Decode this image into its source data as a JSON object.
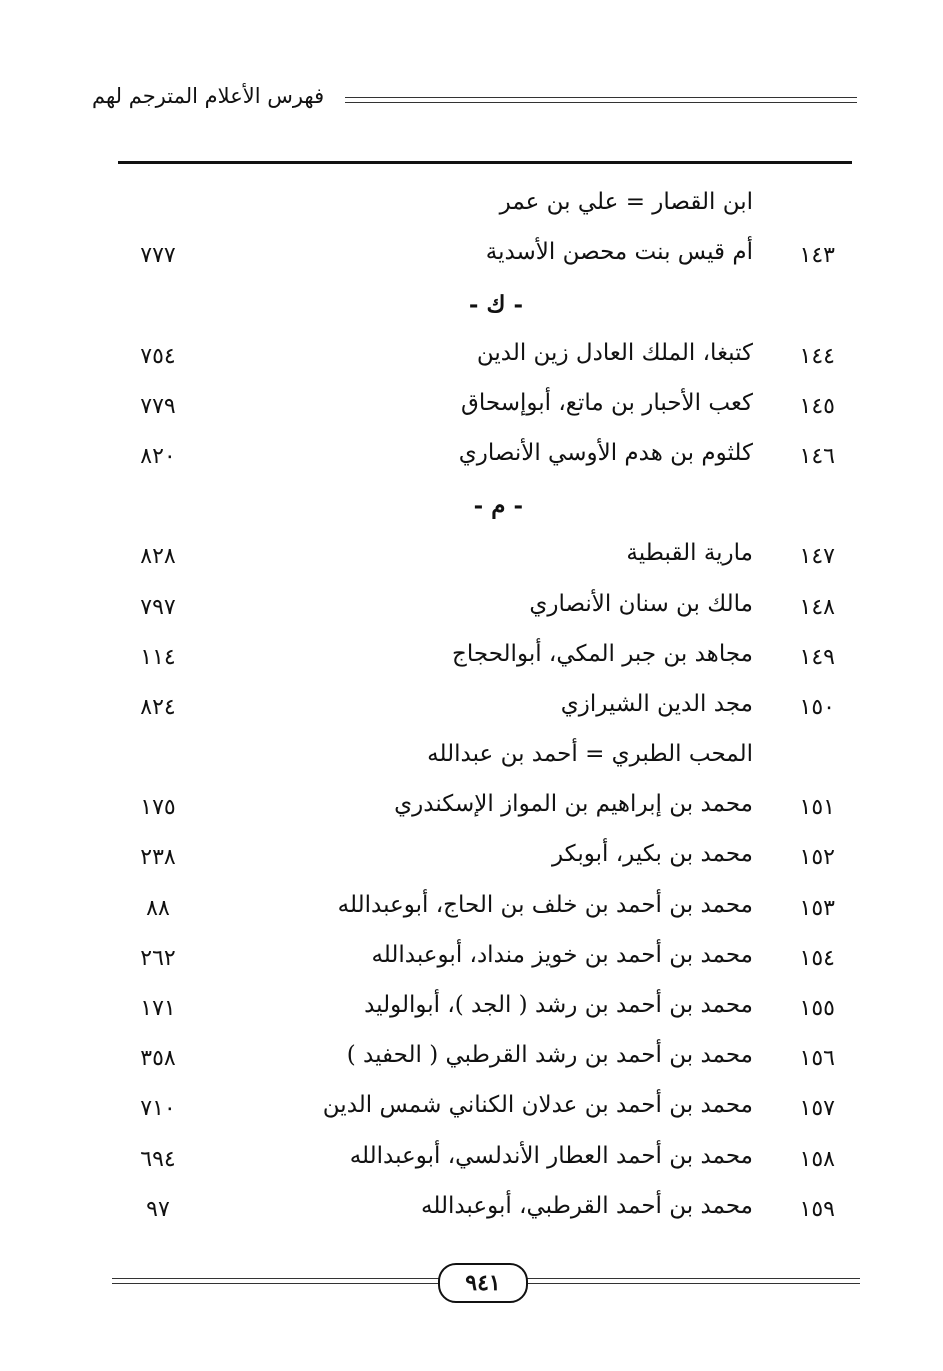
{
  "header": {
    "title": "فهرس الأعلام المترجم لهم"
  },
  "entries": [
    {
      "type": "ref",
      "name": "ابن القصار = علي بن عمر"
    },
    {
      "type": "entry",
      "index": "١٤٣",
      "name": "أم قيس بنت محصن الأسدية",
      "page": "٧٧٧"
    },
    {
      "type": "letter",
      "label": "- ك -"
    },
    {
      "type": "entry",
      "index": "١٤٤",
      "name": "كتبغا، الملك العادل زين الدين",
      "page": "٧٥٤"
    },
    {
      "type": "entry",
      "index": "١٤٥",
      "name": "كعب الأحبار بن ماتع، أبوإسحاق",
      "page": "٧٧٩"
    },
    {
      "type": "entry",
      "index": "١٤٦",
      "name": "كلثوم بن هدم الأوسي الأنصاري",
      "page": "٨٢٠"
    },
    {
      "type": "letter",
      "label": "- م -"
    },
    {
      "type": "entry",
      "index": "١٤٧",
      "name": "مارية القبطية",
      "page": "٨٢٨"
    },
    {
      "type": "entry",
      "index": "١٤٨",
      "name": "مالك بن سنان الأنصاري",
      "page": "٧٩٧"
    },
    {
      "type": "entry",
      "index": "١٤٩",
      "name": "مجاهد بن جبر المكي، أبوالحجاج",
      "page": "١١٤"
    },
    {
      "type": "entry",
      "index": "١٥٠",
      "name": "مجد الدين الشيرازي",
      "page": "٨٢٤"
    },
    {
      "type": "ref",
      "name": "المحب الطبري = أحمد بن عبدالله"
    },
    {
      "type": "entry",
      "index": "١٥١",
      "name": "محمد بن إبراهيم بن المواز الإسكندري",
      "page": "١٧٥"
    },
    {
      "type": "entry",
      "index": "١٥٢",
      "name": "محمد بن بكير، أبوبكر",
      "page": "٢٣٨"
    },
    {
      "type": "entry",
      "index": "١٥٣",
      "name": "محمد بن أحمد بن خلف بن الحاج، أبوعبدالله",
      "page": "٨٨"
    },
    {
      "type": "entry",
      "index": "١٥٤",
      "name": "محمد بن أحمد بن خويز منداد، أبوعبدالله",
      "page": "٢٦٢"
    },
    {
      "type": "entry",
      "index": "١٥٥",
      "name": "محمد بن أحمد بن رشد ( الجد )، أبوالوليد",
      "page": "١٧١"
    },
    {
      "type": "entry",
      "index": "١٥٦",
      "name": "محمد بن أحمد بن رشد القرطبي ( الحفيد )",
      "page": "٣٥٨"
    },
    {
      "type": "entry",
      "index": "١٥٧",
      "name": "محمد بن أحمد بن عدلان الكناني شمس الدين",
      "page": "٧١٠"
    },
    {
      "type": "entry",
      "index": "١٥٨",
      "name": "محمد بن أحمد العطار الأندلسي، أبوعبدالله",
      "page": "٦٩٤"
    },
    {
      "type": "entry",
      "index": "١٥٩",
      "name": "محمد بن أحمد القرطبي، أبوعبدالله",
      "page": "٩٧"
    }
  ],
  "footer": {
    "page_number": "٩٤١"
  }
}
